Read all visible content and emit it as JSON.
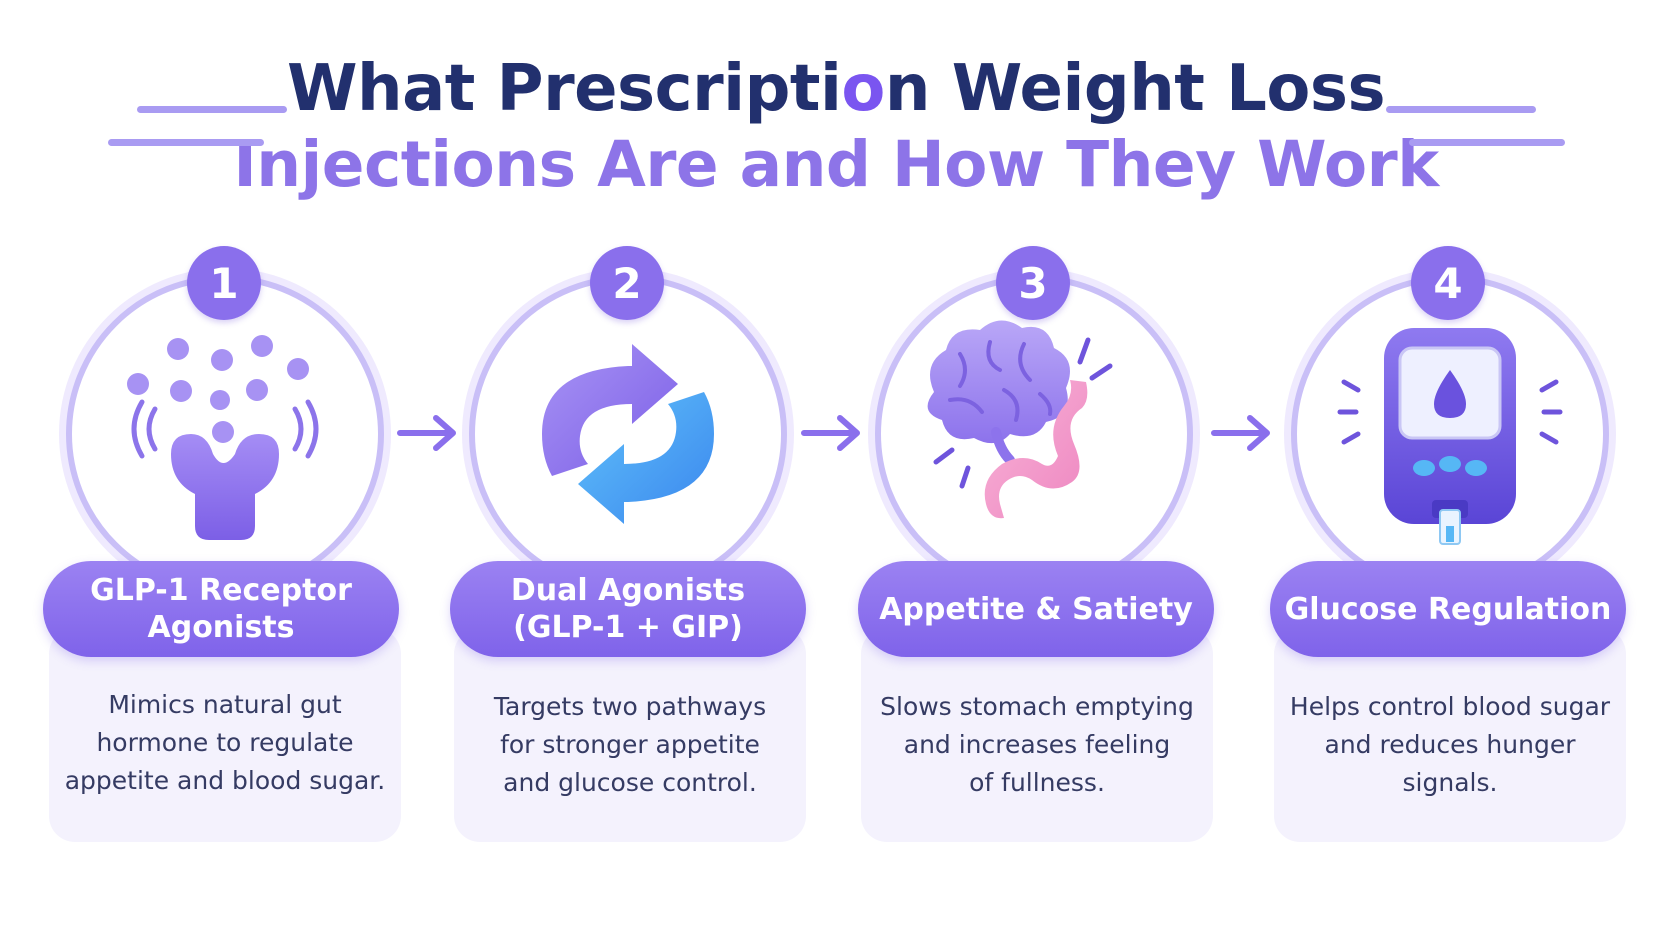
{
  "title": {
    "line1_a": "What Prescripti",
    "line1_o": "o",
    "line1_b": "n Weight Loss",
    "line2": "Injections Are and How They Work"
  },
  "colors": {
    "navy": "#22306e",
    "accent_purple": "#8a6fec",
    "light_purple": "#c9bff7",
    "blue": "#3fa9f5",
    "pink": "#f49ac9",
    "card_bg": "#f4f2fd"
  },
  "steps": [
    {
      "number": "1",
      "icon": "receptor-icon",
      "title_lines": [
        "GLP-1 Receptor",
        "Agonists"
      ],
      "desc_lines": [
        "Mimics natural gut",
        "hormone to regulate",
        "appetite and blood sugar."
      ]
    },
    {
      "number": "2",
      "icon": "dual-cycle-arrows-icon",
      "title_lines": [
        "Dual Agonists",
        "(GLP-1 + GIP)"
      ],
      "desc_lines": [
        "Targets two pathways",
        "for stronger appetite",
        "and glucose control."
      ]
    },
    {
      "number": "3",
      "icon": "brain-stomach-icon",
      "title_lines": [
        "Appetite & Satiety"
      ],
      "desc_lines": [
        "Slows stomach emptying",
        "and increases feeling",
        "of fullness."
      ]
    },
    {
      "number": "4",
      "icon": "glucose-meter-icon",
      "title_lines": [
        "Glucose Regulation"
      ],
      "desc_lines": [
        "Helps control blood sugar",
        "and reduces hunger",
        "signals."
      ]
    }
  ]
}
